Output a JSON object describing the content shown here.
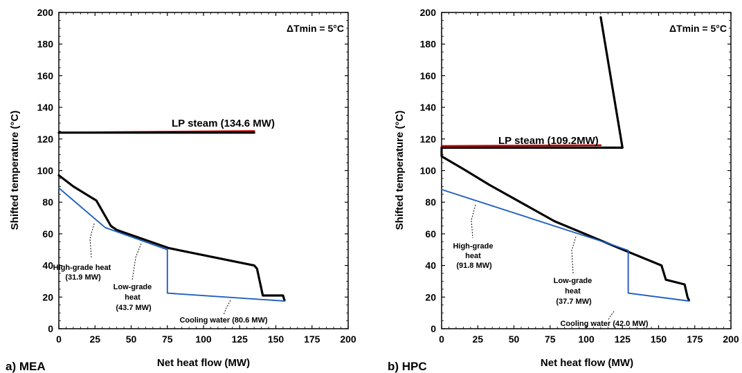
{
  "chart_data": [
    {
      "type": "line",
      "panel_label": "a) MEA",
      "xlabel": "Net heat flow (MW)",
      "ylabel": "Shifted temperature (°C)",
      "xlim": [
        0,
        200
      ],
      "ylim": [
        0,
        200
      ],
      "xticks": [
        "0",
        "25",
        "50",
        "75",
        "100",
        "125",
        "150",
        "175",
        "200"
      ],
      "yticks": [
        "0",
        "20",
        "40",
        "60",
        "80",
        "100",
        "120",
        "140",
        "160",
        "180",
        "200"
      ],
      "grid": false,
      "delta_t_label": "ΔTmin = 5°C",
      "steam_label": "LP steam (134.6 MW)",
      "series": [
        {
          "color": "#000000",
          "points": [
            [
              0,
              97
            ],
            [
              10,
              90
            ],
            [
              26,
              81
            ],
            [
              36,
              65
            ],
            [
              40,
              62.5
            ],
            [
              76,
              51
            ],
            [
              135,
              40
            ],
            [
              137,
              38
            ],
            [
              141,
              21
            ],
            [
              155,
              21
            ],
            [
              156,
              18
            ]
          ]
        },
        {
          "color": "#c00000",
          "points": [
            [
              0,
              124
            ],
            [
              135,
              125
            ]
          ]
        },
        {
          "color": "#000000",
          "points": [
            [
              0,
              124
            ],
            [
              135,
              124
            ]
          ]
        },
        {
          "color": "#1f5fbf",
          "points": [
            [
              0,
              89
            ],
            [
              32,
              64
            ],
            [
              75,
              50
            ],
            [
              75,
              22.5
            ],
            [
              156,
              17.5
            ]
          ]
        }
      ],
      "annotations": [
        {
          "lines": [
            "High-grade heat",
            "(31.9 MW)"
          ]
        },
        {
          "lines": [
            "Low-grade",
            "heat",
            "(43.7 MW)"
          ]
        },
        {
          "lines": [
            "Cooling water (80.6 MW)"
          ]
        }
      ]
    },
    {
      "type": "line",
      "panel_label": "b) HPC",
      "xlabel": "Net heat flow (MW)",
      "ylabel": "Shifted temperature (°C)",
      "xlim": [
        0,
        200
      ],
      "ylim": [
        0,
        200
      ],
      "xticks": [
        "0",
        "25",
        "50",
        "75",
        "100",
        "125",
        "150",
        "175",
        "200"
      ],
      "yticks": [
        "0",
        "20",
        "40",
        "60",
        "80",
        "100",
        "120",
        "140",
        "160",
        "180",
        "200"
      ],
      "grid": false,
      "delta_t_label": "ΔTmin = 5°C",
      "steam_label": "LP steam (109.2MW)",
      "series": [
        {
          "color": "#000000",
          "points": [
            [
              110,
              197
            ],
            [
              125,
              114.5
            ],
            [
              0,
              114.5
            ],
            [
              0,
              109
            ],
            [
              15,
              101
            ],
            [
              33,
              91
            ],
            [
              78,
              68
            ],
            [
              120,
              52
            ],
            [
              152,
              40
            ],
            [
              155,
              31
            ],
            [
              168,
              28
            ],
            [
              170,
              20
            ],
            [
              171,
              18
            ]
          ]
        },
        {
          "color": "#c00000",
          "points": [
            [
              0,
              115.5
            ],
            [
              110,
              116
            ]
          ]
        },
        {
          "color": "#1f5fbf",
          "points": [
            [
              0,
              88
            ],
            [
              115,
              54
            ],
            [
              129,
              49.5
            ],
            [
              129,
              22.5
            ],
            [
              171,
              17.5
            ]
          ]
        }
      ],
      "annotations": [
        {
          "lines": [
            "High-grade",
            "heat",
            "(91.8 MW)"
          ]
        },
        {
          "lines": [
            "Low-grade",
            "heat",
            "(37.7 MW)"
          ]
        },
        {
          "lines": [
            "Cooling water (42.0 MW)"
          ]
        }
      ]
    }
  ]
}
